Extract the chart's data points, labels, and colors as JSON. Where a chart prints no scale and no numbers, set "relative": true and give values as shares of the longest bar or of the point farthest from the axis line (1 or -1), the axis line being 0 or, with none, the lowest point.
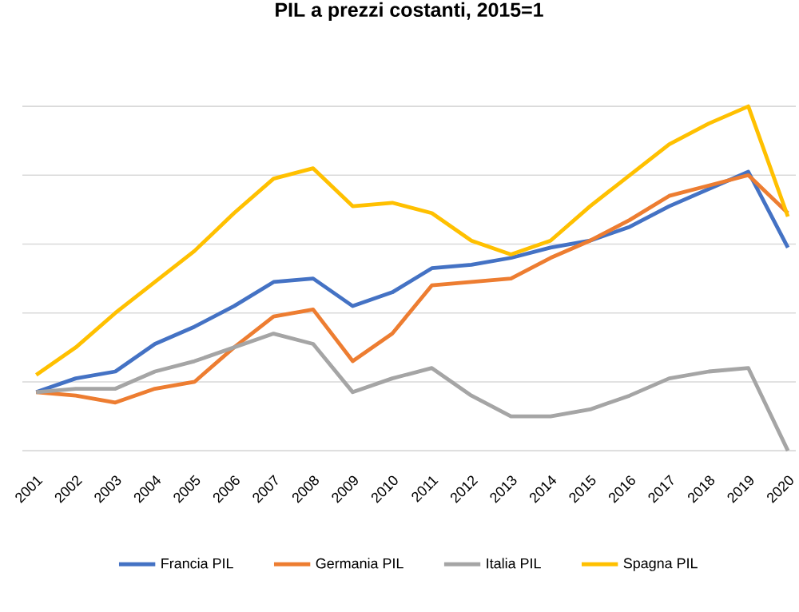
{
  "chart_data": {
    "type": "line",
    "title": "PIL a prezzi costanti, 2015=1",
    "relative": true,
    "grid": "y",
    "legend": "bottom",
    "marker": "none",
    "line_style": "solid",
    "categories": [
      "2001",
      "2002",
      "2003",
      "2004",
      "2005",
      "2006",
      "2007",
      "2008",
      "2009",
      "2010",
      "2011",
      "2012",
      "2013",
      "2014",
      "2015",
      "2016",
      "2017",
      "2018",
      "2019",
      "2020"
    ],
    "series": [
      {
        "name": "Francia PIL",
        "color": "#4472c4",
        "values": [
          0.17,
          0.21,
          0.23,
          0.31,
          0.36,
          0.42,
          0.49,
          0.5,
          0.42,
          0.46,
          0.53,
          0.54,
          0.56,
          0.59,
          0.61,
          0.65,
          0.71,
          0.76,
          0.81,
          0.59
        ]
      },
      {
        "name": "Germania PIL",
        "color": "#ed7d31",
        "values": [
          0.17,
          0.16,
          0.14,
          0.18,
          0.2,
          0.3,
          0.39,
          0.41,
          0.26,
          0.34,
          0.48,
          0.49,
          0.5,
          0.56,
          0.61,
          0.67,
          0.74,
          0.77,
          0.8,
          0.69
        ]
      },
      {
        "name": "Italia PIL",
        "color": "#a5a5a5",
        "values": [
          0.17,
          0.18,
          0.18,
          0.23,
          0.26,
          0.3,
          0.34,
          0.31,
          0.17,
          0.21,
          0.24,
          0.16,
          0.1,
          0.1,
          0.12,
          0.16,
          0.21,
          0.23,
          0.24,
          0.0
        ]
      },
      {
        "name": "Spagna PIL",
        "color": "#ffc000",
        "values": [
          0.22,
          0.3,
          0.4,
          0.49,
          0.58,
          0.69,
          0.79,
          0.82,
          0.71,
          0.72,
          0.69,
          0.61,
          0.57,
          0.61,
          0.71,
          0.8,
          0.89,
          0.95,
          1.0,
          0.68
        ]
      }
    ]
  }
}
